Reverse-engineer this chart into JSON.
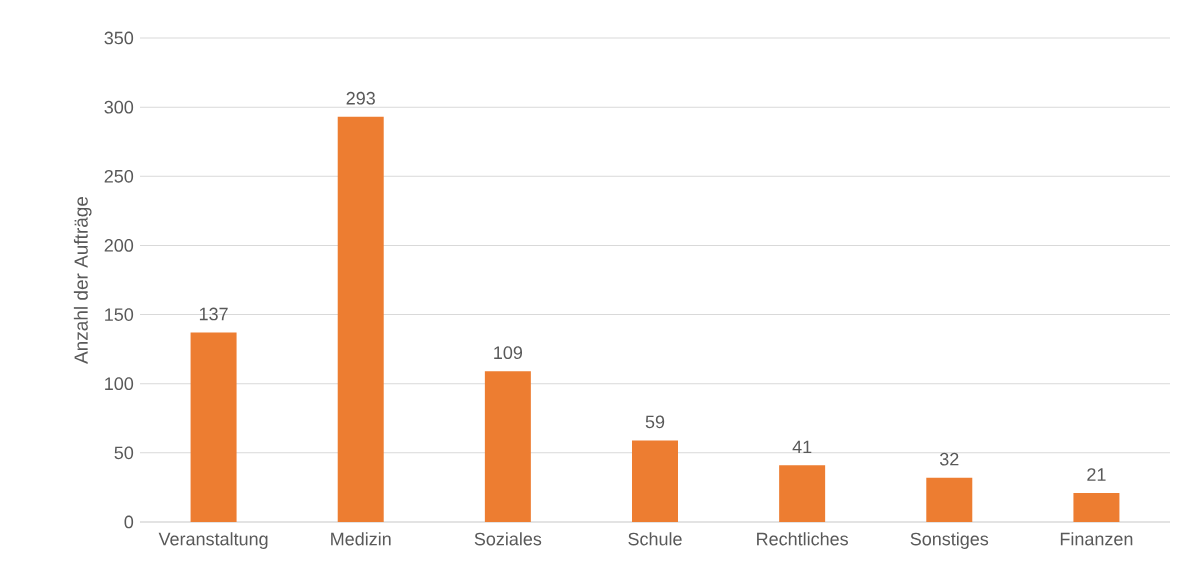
{
  "chart_data": {
    "type": "bar",
    "ylabel": "Anzahl der Aufträge",
    "categories": [
      "Veranstaltung",
      "Medizin",
      "Soziales",
      "Schule",
      "Rechtliches",
      "Sonstiges",
      "Finanzen"
    ],
    "values": [
      137,
      293,
      109,
      59,
      41,
      32,
      21
    ],
    "color": "#ed7d31",
    "ylim": [
      0,
      350
    ],
    "yticks": [
      0,
      50,
      100,
      150,
      200,
      250,
      300,
      350
    ],
    "grid": "y",
    "data_labels": true
  }
}
